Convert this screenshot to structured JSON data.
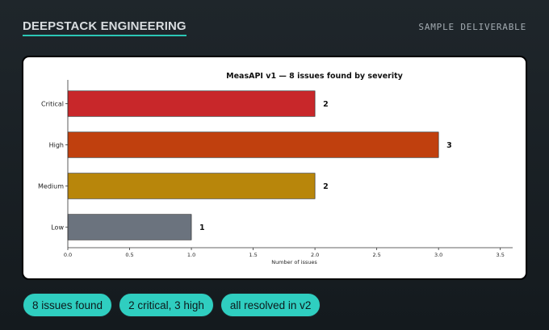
{
  "header": {
    "brand": "DEEPSTACK ENGINEERING",
    "tag": "SAMPLE DELIVERABLE"
  },
  "chart_data": {
    "type": "bar",
    "orientation": "horizontal",
    "title": "MeasAPI v1 — 8 issues found by severity",
    "xlabel": "Number of issues",
    "ylabel": "",
    "categories": [
      "Critical",
      "High",
      "Medium",
      "Low"
    ],
    "values": [
      2,
      3,
      2,
      1
    ],
    "colors": [
      "#c8272a",
      "#c0400e",
      "#b8860b",
      "#6b737e"
    ],
    "xlim": [
      0,
      3.6
    ],
    "xticks": [
      "0.0",
      "0.5",
      "1.0",
      "1.5",
      "2.0",
      "2.5",
      "3.0",
      "3.5"
    ],
    "xtick_values": [
      0,
      0.5,
      1.0,
      1.5,
      2.0,
      2.5,
      3.0,
      3.5
    ],
    "data_labels": [
      "2",
      "3",
      "2",
      "1"
    ],
    "grid": false,
    "legend": "none"
  },
  "pills": [
    {
      "label": "8 issues found"
    },
    {
      "label": "2 critical, 3 high"
    },
    {
      "label": "all resolved in v2"
    }
  ]
}
